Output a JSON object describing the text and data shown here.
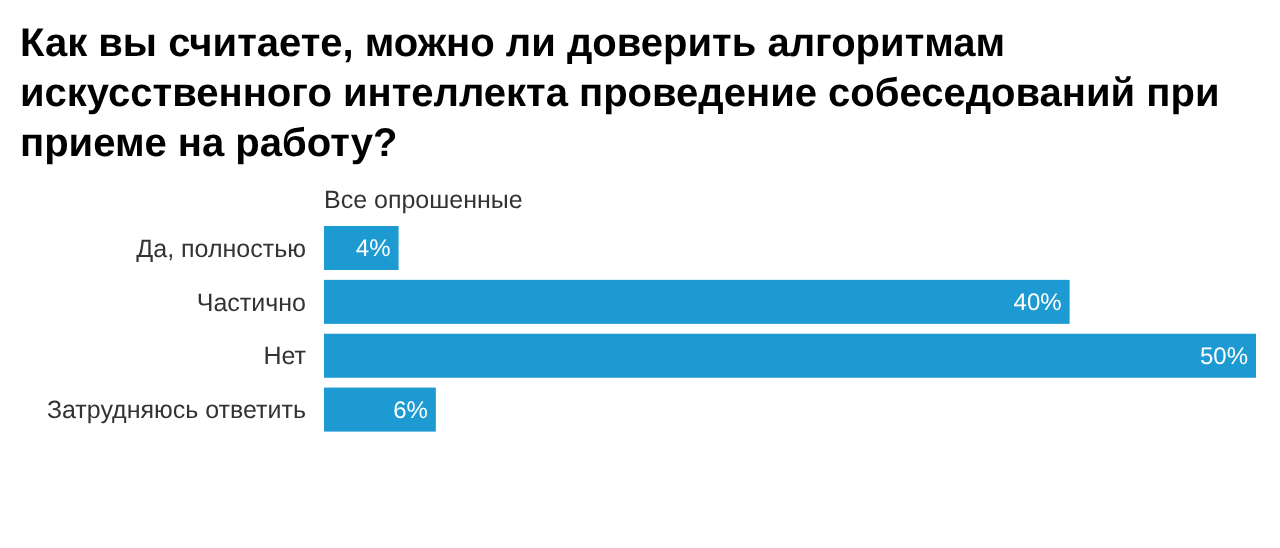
{
  "chart_data": {
    "type": "bar",
    "orientation": "horizontal",
    "title": "Как вы считаете, можно ли доверить алгоритмам искусственного интеллекта проведение собеседований при приеме на работу?",
    "categories": [
      "Да, полностью",
      "Частично",
      "Нет",
      "Затрудняюсь ответить"
    ],
    "series": [
      {
        "name": "Все опрошенные",
        "color": "#1d9ad1",
        "values": [
          4,
          40,
          50,
          6
        ],
        "value_labels": [
          "4%",
          "40%",
          "50%",
          "6%"
        ]
      }
    ]
  }
}
